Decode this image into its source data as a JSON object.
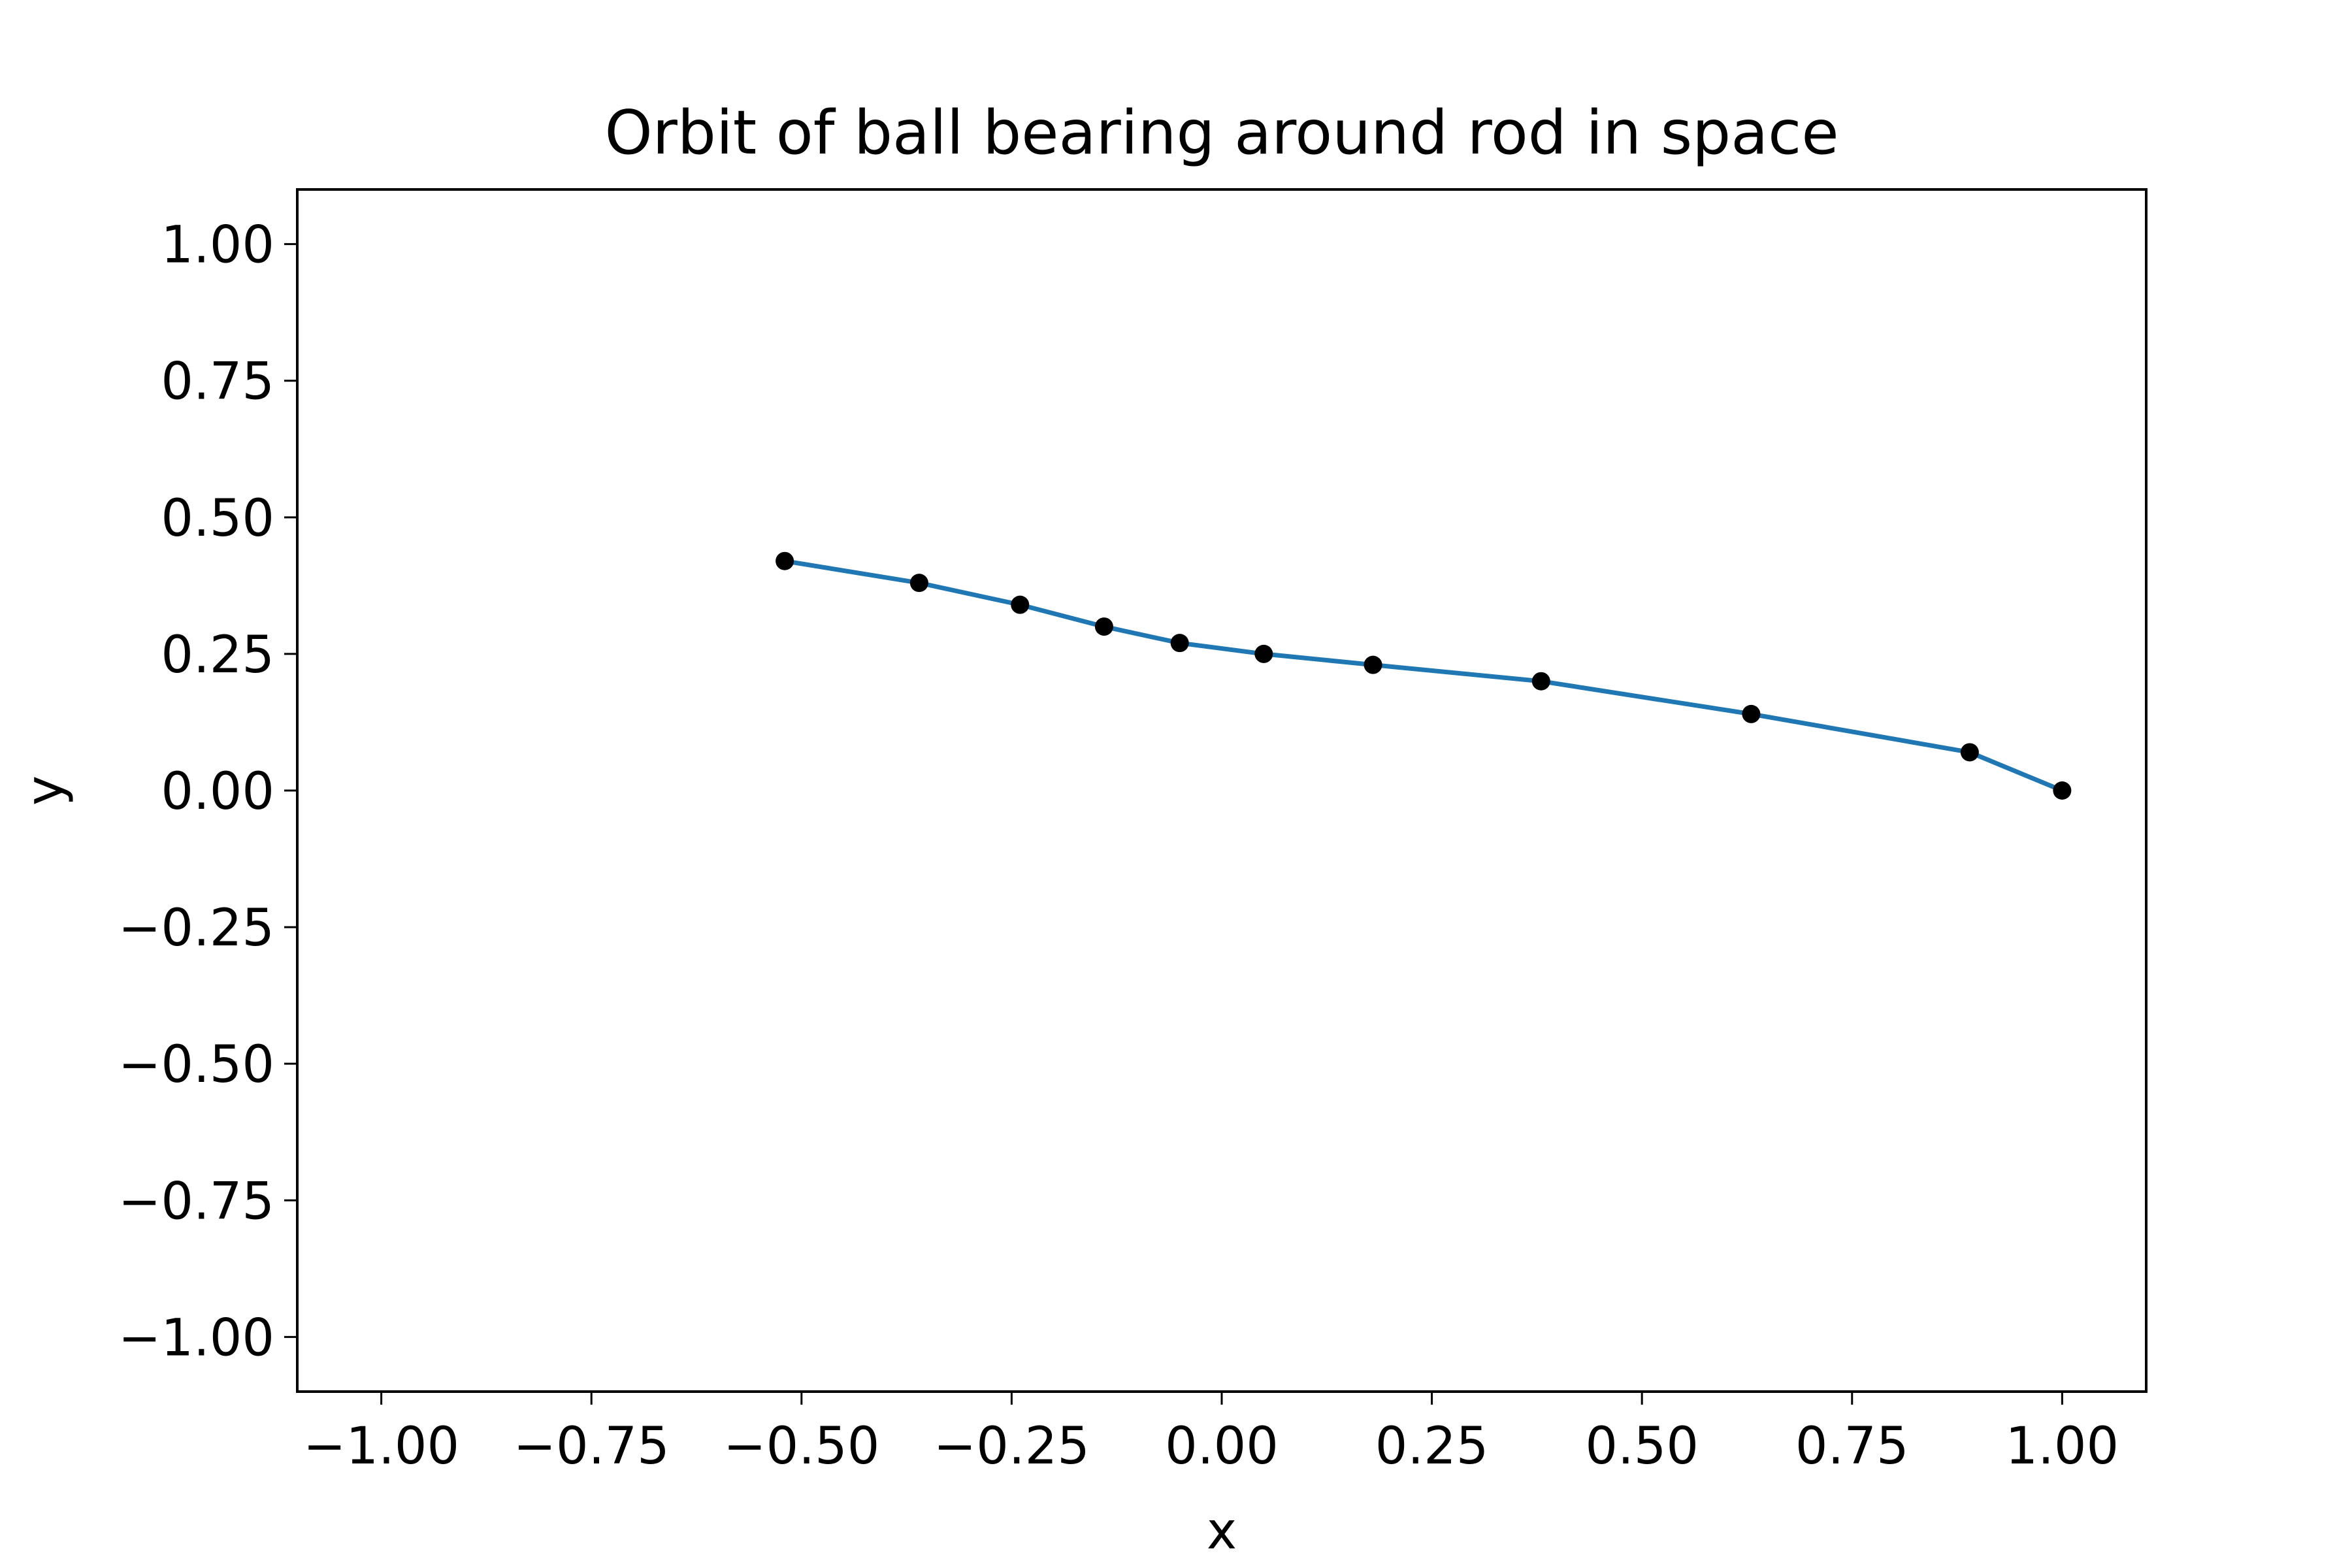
{
  "chart_data": {
    "type": "line",
    "title": "Orbit of ball bearing around rod in space",
    "xlabel": "x",
    "ylabel": "y",
    "xlim": [
      -1.1,
      1.1
    ],
    "ylim": [
      -1.1,
      1.1
    ],
    "xticks": [
      -1.0,
      -0.75,
      -0.5,
      -0.25,
      0.0,
      0.25,
      0.5,
      0.75,
      1.0
    ],
    "yticks": [
      -1.0,
      -0.75,
      -0.5,
      -0.25,
      0.0,
      0.25,
      0.5,
      0.75,
      1.0
    ],
    "xtick_labels": [
      "−1.00",
      "−0.75",
      "−0.50",
      "−0.25",
      "0.00",
      "0.25",
      "0.50",
      "0.75",
      "1.00"
    ],
    "ytick_labels": [
      "−1.00",
      "−0.75",
      "−0.50",
      "−0.25",
      "0.00",
      "0.25",
      "0.50",
      "0.75",
      "1.00"
    ],
    "grid": false,
    "legend": "none",
    "series": [
      {
        "style": "line with point markers",
        "line_color": "#1f77b4",
        "marker_color": "#000000",
        "x": [
          1.0,
          0.89,
          0.63,
          0.38,
          0.18,
          0.05,
          -0.05,
          -0.14,
          -0.24,
          -0.36,
          -0.52
        ],
        "y": [
          0.0,
          0.07,
          0.14,
          0.2,
          0.23,
          0.25,
          0.27,
          0.3,
          0.34,
          0.38,
          0.42
        ]
      }
    ]
  }
}
